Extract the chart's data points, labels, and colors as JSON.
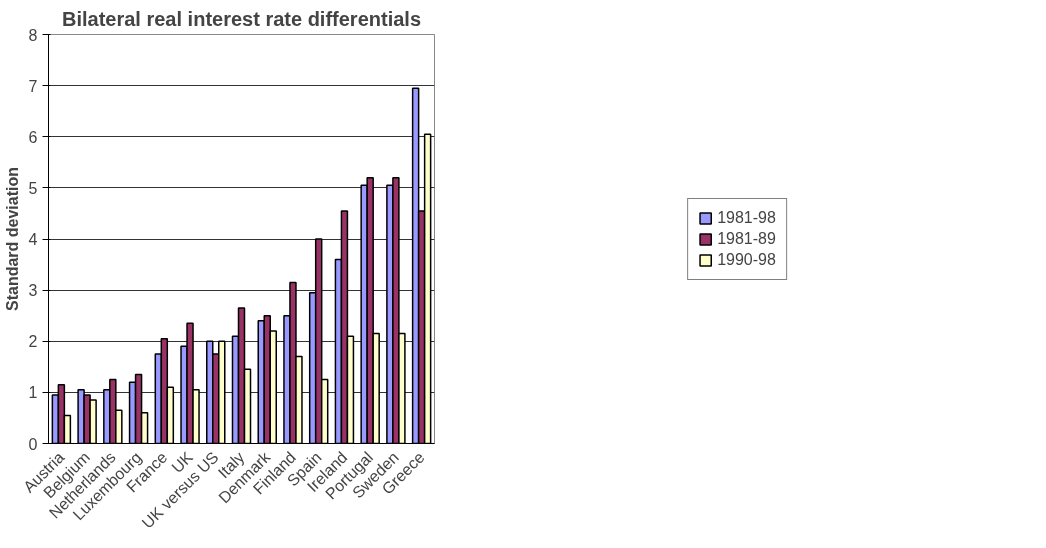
{
  "chart_data": {
    "type": "bar",
    "title": "Bilateral real interest rate differentials",
    "ylabel": "Standard deviation",
    "categories": [
      "Austria",
      "Belgium",
      "Netherlands",
      "Luxembourg",
      "France",
      "UK",
      "UK versus US",
      "Italy",
      "Denmark",
      "Finland",
      "Spain",
      "Ireland",
      "Portugal",
      "Sweden",
      "Greece"
    ],
    "series": [
      {
        "name": "1981-98",
        "color": "#9999ff",
        "values": [
          0.95,
          1.05,
          1.05,
          1.2,
          1.75,
          1.9,
          2.0,
          2.1,
          2.4,
          2.5,
          2.95,
          3.6,
          5.05,
          5.05,
          6.95
        ]
      },
      {
        "name": "1981-89",
        "color": "#993366",
        "values": [
          1.15,
          0.95,
          1.25,
          1.35,
          2.05,
          2.35,
          1.75,
          2.65,
          2.5,
          3.15,
          4.0,
          4.55,
          5.2,
          5.2,
          4.55
        ]
      },
      {
        "name": "1990-98",
        "color": "#ffffcc",
        "values": [
          0.55,
          0.85,
          0.65,
          0.6,
          1.1,
          1.05,
          2.0,
          1.45,
          2.2,
          1.7,
          1.25,
          2.1,
          2.15,
          2.15,
          6.05
        ]
      }
    ],
    "ylim": [
      0,
      8
    ],
    "yticks": [
      0,
      1,
      2,
      3,
      4,
      5,
      6,
      7,
      8
    ],
    "grid": "y",
    "legend": "right"
  }
}
